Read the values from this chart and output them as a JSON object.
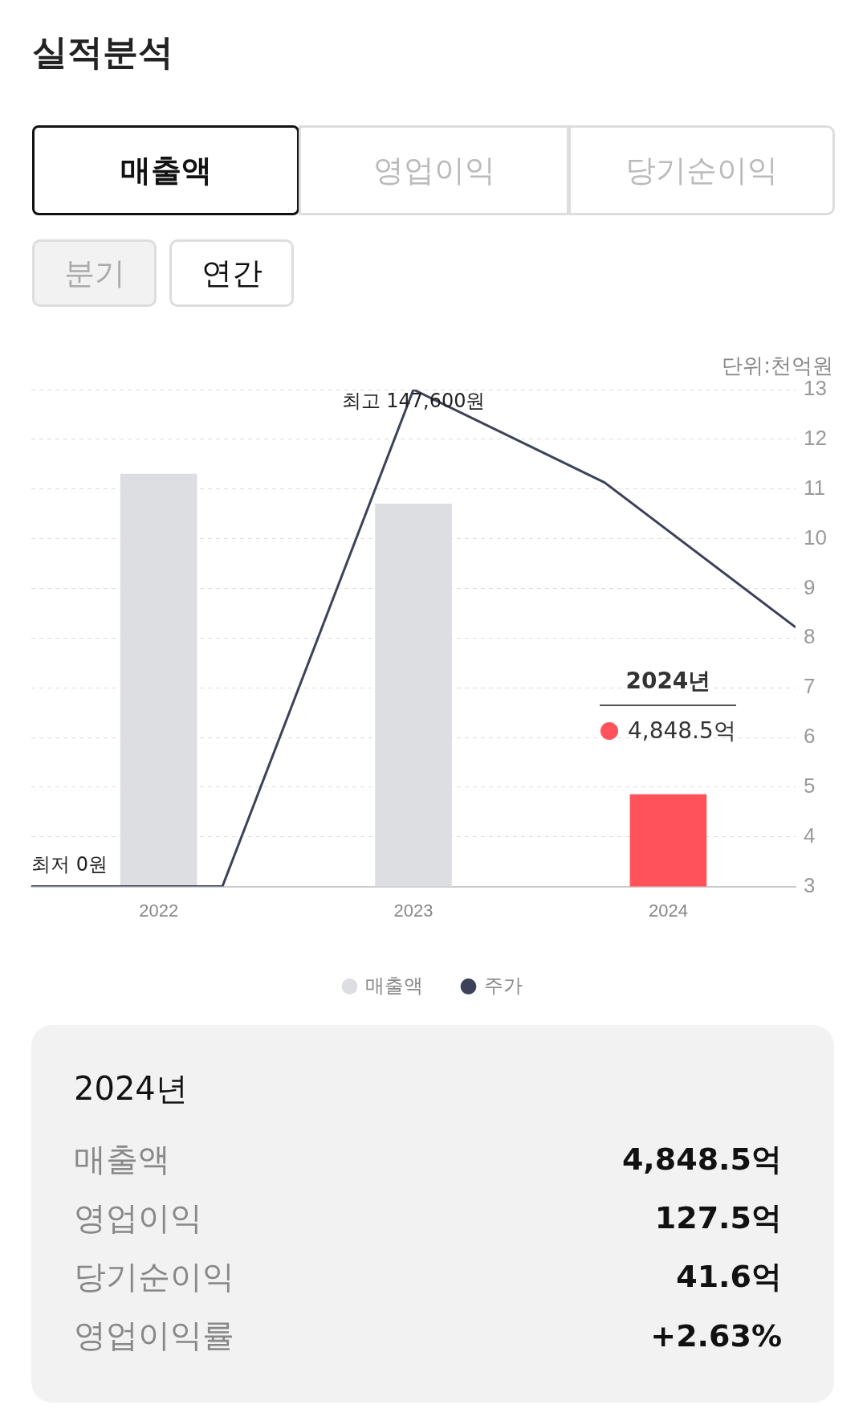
{
  "chart_data": {
    "type": "bar",
    "title": "실적분석",
    "ylabel": "단위:천억원",
    "x": [
      2022,
      2023,
      2024
    ],
    "xticks": [
      2022,
      2023,
      2024
    ],
    "series": [
      {
        "name": "매출액",
        "color": "#dddee2",
        "colors": [
          "#dddee2",
          "#dddee2",
          "#ff525a"
        ],
        "values": [
          11.3,
          10.7,
          4.85
        ]
      },
      {
        "name": "주가",
        "type": "line",
        "axis": "y2",
        "color": "#3d4259",
        "x": [
          2021.5,
          2022.25,
          2023,
          2023.75,
          2024.5
        ],
        "values": [
          0,
          0,
          147600,
          120000,
          77000
        ],
        "value_labels": [
          "최저 0원",
          null,
          "최고 147,600원",
          null,
          null
        ]
      }
    ],
    "ylim": [
      3,
      13
    ],
    "yticks": [
      3,
      4,
      5,
      6,
      7,
      8,
      9,
      10,
      11,
      12,
      13
    ],
    "y2lim": [
      0,
      147600
    ],
    "xlim": [
      2021.5,
      2024.5
    ],
    "grid": "y",
    "legend": "bottom",
    "marker": "none",
    "annotations": [
      "2024년",
      "4,848.5억",
      "매출액",
      "영업이익",
      "당기순이익",
      "분기",
      "연간",
      "2024년",
      "매출액",
      "4,848.5억",
      "영업이익",
      "127.5억",
      "당기순이익",
      "41.6억",
      "영업이익률",
      "+2.63%"
    ]
  }
}
